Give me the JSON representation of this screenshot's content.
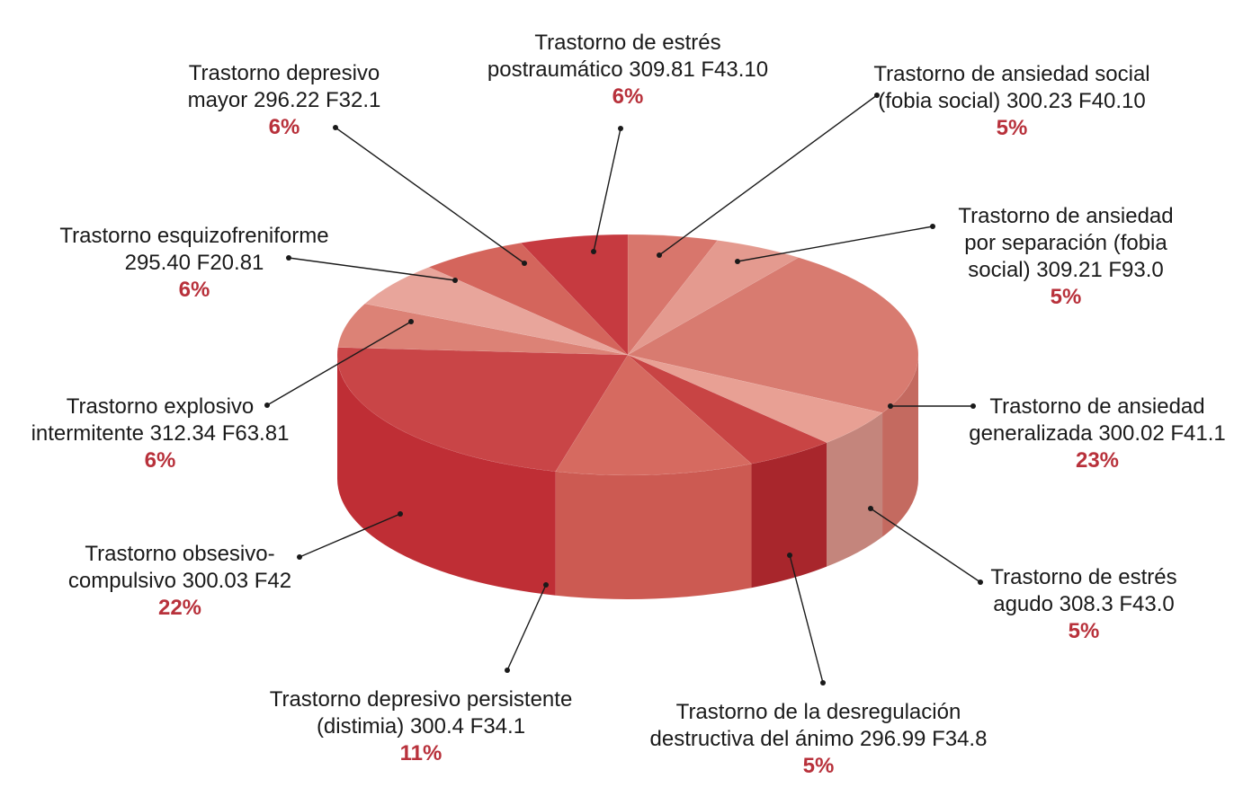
{
  "chart_data": {
    "type": "pie",
    "variant": "3d",
    "title": "",
    "label_color": "#b8313b",
    "slices": [
      {
        "lines": [
          "Trastorno de ansiedad social",
          "(fobia social) 300.23 F40.10"
        ],
        "pct": "5%",
        "value": 5,
        "color": "#d8766c",
        "side": "#b85a52"
      },
      {
        "lines": [
          "Trastorno de ansiedad",
          "por separación (fobia",
          "social) 309.21 F93.0"
        ],
        "pct": "5%",
        "value": 5,
        "color": "#e49a8f",
        "side": "#c27a70"
      },
      {
        "lines": [
          "Trastorno de ansiedad",
          "generalizada 300.02 F41.1"
        ],
        "pct": "23%",
        "value": 23,
        "color": "#d87b70",
        "side": "#c46a60"
      },
      {
        "lines": [
          "Trastorno de estrés",
          "agudo 308.3 F43.0"
        ],
        "pct": "5%",
        "value": 5,
        "color": "#e8a094",
        "side": "#c4857c"
      },
      {
        "lines": [
          "Trastorno de la desregulación",
          "destructiva del ánimo 296.99 F34.8"
        ],
        "pct": "5%",
        "value": 5,
        "color": "#c84444",
        "side": "#a8262c"
      },
      {
        "lines": [
          "Trastorno depresivo persistente",
          "(distimia) 300.4 F34.1"
        ],
        "pct": "11%",
        "value": 11,
        "color": "#d66a60",
        "side": "#cc5a52"
      },
      {
        "lines": [
          "Trastorno obsesivo-",
          "compulsivo 300.03 F42"
        ],
        "pct": "22%",
        "value": 22,
        "color": "#c94547",
        "side": "#bf2e35"
      },
      {
        "lines": [
          "Trastorno explosivo",
          "intermitente 312.34 F63.81"
        ],
        "pct": "6%",
        "value": 6,
        "color": "#dc8276",
        "side": "#c06a60"
      },
      {
        "lines": [
          "Trastorno esquizofreniforme",
          "295.40 F20.81"
        ],
        "pct": "6%",
        "value": 6,
        "color": "#e8a59b",
        "side": "#c8857c"
      },
      {
        "lines": [
          "Trastorno depresivo",
          "mayor 296.22 F32.1"
        ],
        "pct": "6%",
        "value": 6,
        "color": "#d4655c",
        "side": "#b04a44"
      },
      {
        "lines": [
          "Trastorno de estrés",
          "postraumático 309.81 F43.10"
        ],
        "pct": "6%",
        "value": 6,
        "color": "#c63a40",
        "side": "#a2282e"
      }
    ]
  }
}
